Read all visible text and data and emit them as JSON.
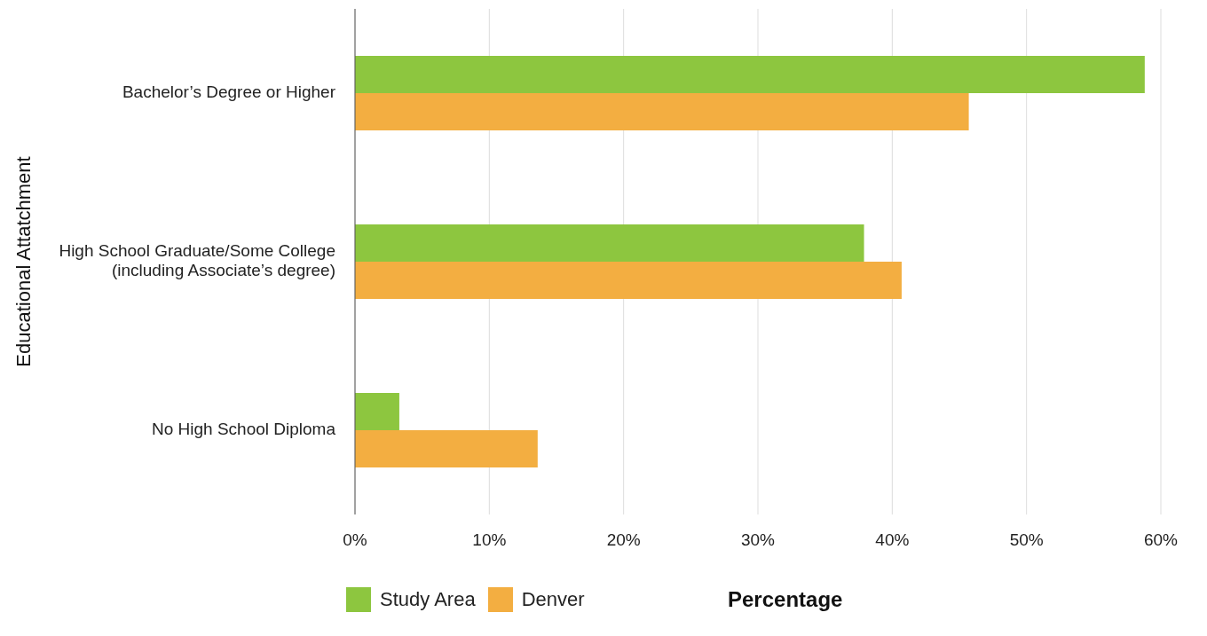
{
  "chart_data": {
    "type": "bar",
    "orientation": "horizontal",
    "categories": [
      "Bachelor’s Degree or Higher",
      "High School Graduate/Some College (including Associate’s degree)",
      "No High School Diploma"
    ],
    "series": [
      {
        "name": "Study Area",
        "color": "#8dc63f",
        "values": [
          58.8,
          37.9,
          3.3
        ]
      },
      {
        "name": "Denver",
        "color": "#f3ae41",
        "values": [
          45.7,
          40.7,
          13.6
        ]
      }
    ],
    "xlim": [
      0,
      60
    ],
    "xticks": [
      {
        "value": 0,
        "label": "0%"
      },
      {
        "value": 10,
        "label": "10%"
      },
      {
        "value": 20,
        "label": "20%"
      },
      {
        "value": 30,
        "label": "30%"
      },
      {
        "value": 40,
        "label": "40%"
      },
      {
        "value": 50,
        "label": "50%"
      },
      {
        "value": 60,
        "label": "60%"
      }
    ],
    "xlabel": "Percentage",
    "ylabel": "Educational Attatchment",
    "grid": "x",
    "legend": "bottom"
  }
}
